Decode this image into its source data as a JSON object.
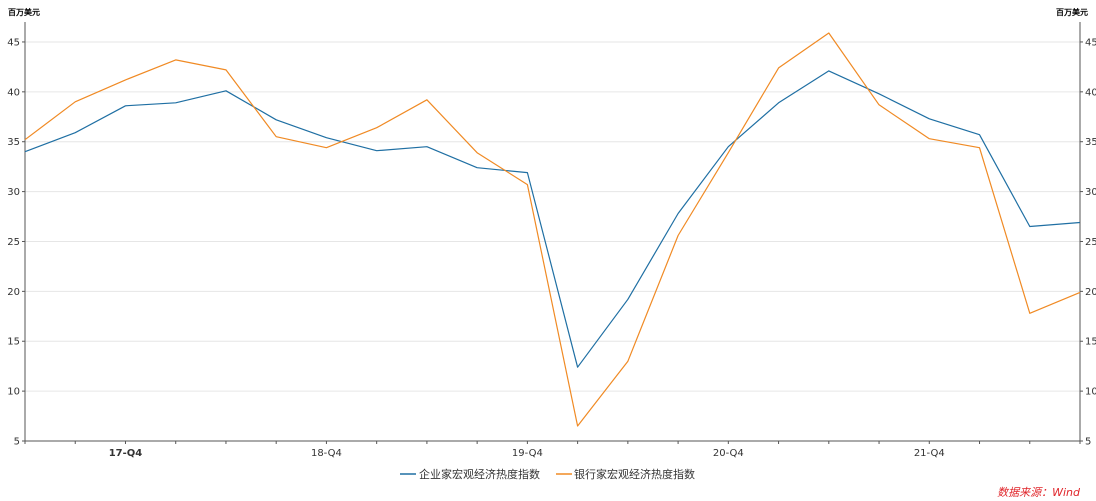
{
  "chart_data": {
    "type": "line",
    "unit_left": "百万美元",
    "unit_right": "百万美元",
    "ylim": [
      5,
      47
    ],
    "yticks": [
      5,
      10,
      15,
      20,
      25,
      30,
      35,
      40,
      45
    ],
    "x_labels": [
      {
        "label": "17-Q4",
        "index": 2,
        "bold": true
      },
      {
        "label": "18-Q4",
        "index": 6,
        "bold": false
      },
      {
        "label": "19-Q4",
        "index": 10,
        "bold": false
      },
      {
        "label": "20-Q4",
        "index": 14,
        "bold": false
      },
      {
        "label": "21-Q4",
        "index": 18,
        "bold": false
      }
    ],
    "series": [
      {
        "name": "企业家宏观经济热度指数",
        "color": "#1f6fa3",
        "values": [
          34.0,
          35.9,
          38.6,
          38.9,
          40.1,
          37.2,
          35.4,
          34.1,
          34.5,
          32.4,
          31.9,
          12.4,
          19.2,
          27.8,
          34.5,
          38.9,
          42.1,
          39.8,
          37.3,
          35.7,
          26.5,
          26.9
        ]
      },
      {
        "name": "银行家宏观经济热度指数",
        "color": "#f08a24",
        "values": [
          35.2,
          39.0,
          41.2,
          43.2,
          42.2,
          35.5,
          34.4,
          36.4,
          39.2,
          33.9,
          30.7,
          6.5,
          13.0,
          25.6,
          33.9,
          42.4,
          45.9,
          38.7,
          35.3,
          34.4,
          17.8,
          19.9
        ]
      }
    ],
    "source": "数据来源：Wind"
  }
}
